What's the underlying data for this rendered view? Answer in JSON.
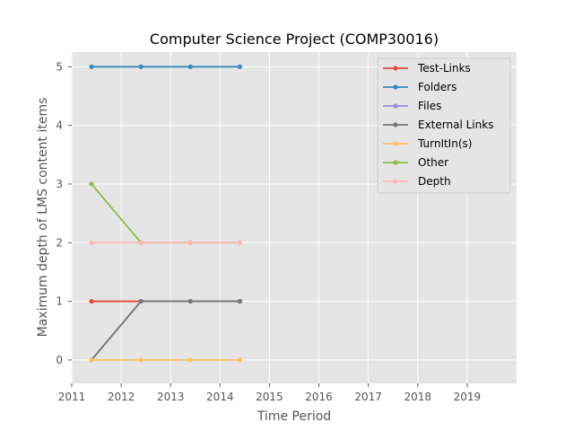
{
  "chart_data": {
    "type": "line",
    "title": "Computer Science Project (COMP30016)",
    "xlabel": "Time Period",
    "ylabel": "Maximum depth of LMS content items",
    "xlim": [
      2011,
      2020
    ],
    "ylim": [
      -0.4,
      5.25
    ],
    "xticks": [
      2011,
      2012,
      2013,
      2014,
      2015,
      2016,
      2017,
      2018,
      2019
    ],
    "yticks": [
      0,
      1,
      2,
      3,
      4,
      5
    ],
    "grid": true,
    "legend_position": "top-right",
    "x": [
      2011.4,
      2012.4,
      2013.4,
      2014.4
    ],
    "series": [
      {
        "name": "Test-Links",
        "color": "#E24A33",
        "values": [
          1,
          1,
          1,
          1
        ]
      },
      {
        "name": "Folders",
        "color": "#348ABD",
        "values": [
          5,
          5,
          5,
          5
        ]
      },
      {
        "name": "Files",
        "color": "#988ED5",
        "values": [
          0,
          1,
          1,
          1
        ]
      },
      {
        "name": "External Links",
        "color": "#777777",
        "values": [
          0,
          1,
          1,
          1
        ]
      },
      {
        "name": "TurnItIn(s)",
        "color": "#FBC15E",
        "values": [
          0,
          0,
          0,
          0
        ]
      },
      {
        "name": "Other",
        "color": "#8EBA42",
        "values": [
          3,
          2,
          2,
          2
        ]
      },
      {
        "name": "Depth",
        "color": "#FFB5B8",
        "values": [
          2,
          2,
          2,
          2
        ]
      }
    ]
  }
}
